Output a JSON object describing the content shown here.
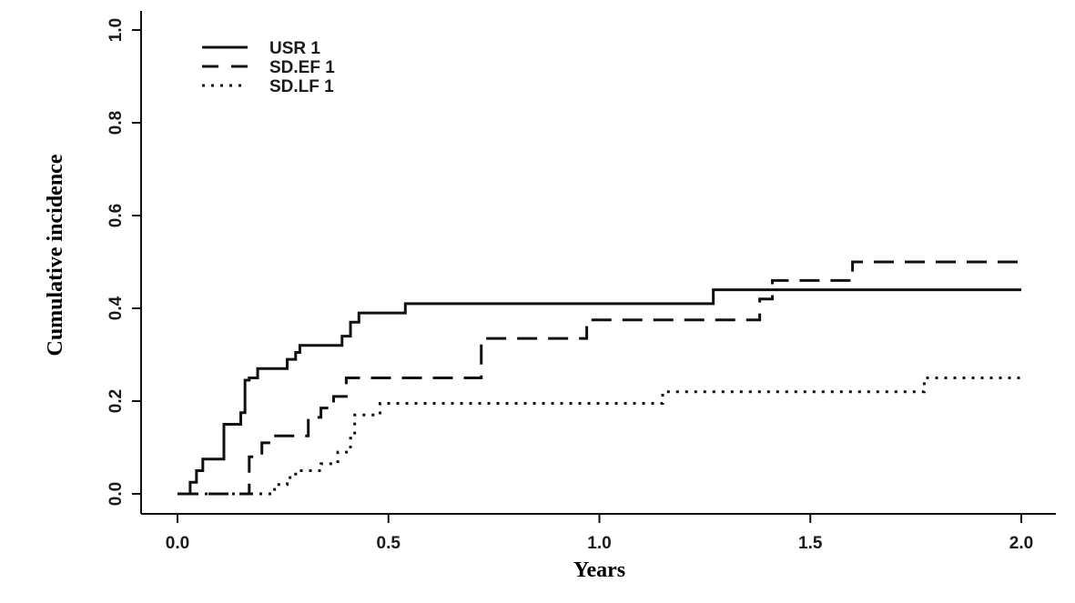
{
  "chart_data": {
    "type": "line",
    "xlabel": "Years",
    "ylabel": "Cumulative incidence",
    "xlim": [
      0,
      2
    ],
    "ylim": [
      0,
      1
    ],
    "xticks": [
      "0.0",
      "0.5",
      "1.0",
      "1.5",
      "2.0"
    ],
    "yticks": [
      "0.0",
      "0.2",
      "0.4",
      "0.6",
      "0.8",
      "1.0"
    ],
    "legend_position": "top-left",
    "grid": false,
    "series": [
      {
        "name": "USR 1",
        "style": "solid",
        "steps": [
          [
            0.0,
            0.0
          ],
          [
            0.03,
            0.025
          ],
          [
            0.045,
            0.05
          ],
          [
            0.06,
            0.075
          ],
          [
            0.11,
            0.15
          ],
          [
            0.15,
            0.175
          ],
          [
            0.16,
            0.245
          ],
          [
            0.17,
            0.25
          ],
          [
            0.19,
            0.27
          ],
          [
            0.26,
            0.29
          ],
          [
            0.28,
            0.305
          ],
          [
            0.29,
            0.32
          ],
          [
            0.39,
            0.34
          ],
          [
            0.41,
            0.37
          ],
          [
            0.43,
            0.39
          ],
          [
            0.54,
            0.41
          ],
          [
            1.27,
            0.44
          ],
          [
            2.0,
            0.44
          ]
        ]
      },
      {
        "name": "SD.EF 1",
        "style": "dashed",
        "steps": [
          [
            0.0,
            0.0
          ],
          [
            0.17,
            0.08
          ],
          [
            0.2,
            0.11
          ],
          [
            0.22,
            0.125
          ],
          [
            0.31,
            0.165
          ],
          [
            0.34,
            0.185
          ],
          [
            0.37,
            0.21
          ],
          [
            0.4,
            0.25
          ],
          [
            0.72,
            0.335
          ],
          [
            0.97,
            0.375
          ],
          [
            1.38,
            0.42
          ],
          [
            1.41,
            0.46
          ],
          [
            1.6,
            0.5
          ],
          [
            2.0,
            0.5
          ]
        ]
      },
      {
        "name": "SD.LF 1",
        "style": "dotted",
        "steps": [
          [
            0.0,
            0.0
          ],
          [
            0.23,
            0.02
          ],
          [
            0.26,
            0.035
          ],
          [
            0.28,
            0.05
          ],
          [
            0.34,
            0.065
          ],
          [
            0.38,
            0.09
          ],
          [
            0.41,
            0.12
          ],
          [
            0.42,
            0.17
          ],
          [
            0.48,
            0.195
          ],
          [
            1.15,
            0.22
          ],
          [
            1.77,
            0.25
          ],
          [
            2.0,
            0.25
          ]
        ]
      }
    ]
  }
}
